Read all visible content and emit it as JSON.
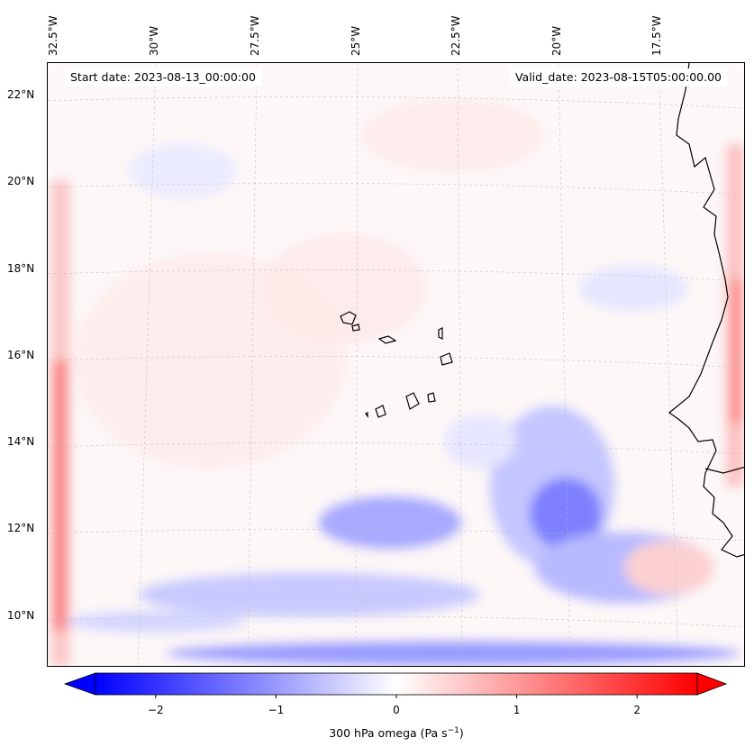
{
  "header": {
    "start_date": "Start date: 2023-08-13_00:00:00",
    "valid_date": "Valid_date: 2023-08-15T05:00:00.00"
  },
  "axes": {
    "lon_labels": [
      "32.5°W",
      "30°W",
      "27.5°W",
      "25°W",
      "22.5°W",
      "20°W",
      "17.5°W"
    ],
    "lat_labels": [
      "22°N",
      "20°N",
      "18°N",
      "16°N",
      "14°N",
      "12°N",
      "10°N"
    ]
  },
  "colorbar": {
    "label": "300 hPa omega (Pa s",
    "label_sup": "−1",
    "label_end": ")",
    "ticks": [
      "−2",
      "−1",
      "0",
      "1",
      "2"
    ],
    "tick_values": [
      -2,
      -1,
      0,
      1,
      2
    ],
    "range": [
      -2.5,
      2.5
    ],
    "extend": "both",
    "colormap": "bwr",
    "colors": {
      "low": "#0000ff",
      "mid": "#ffffff",
      "high": "#ff0000"
    }
  }
}
